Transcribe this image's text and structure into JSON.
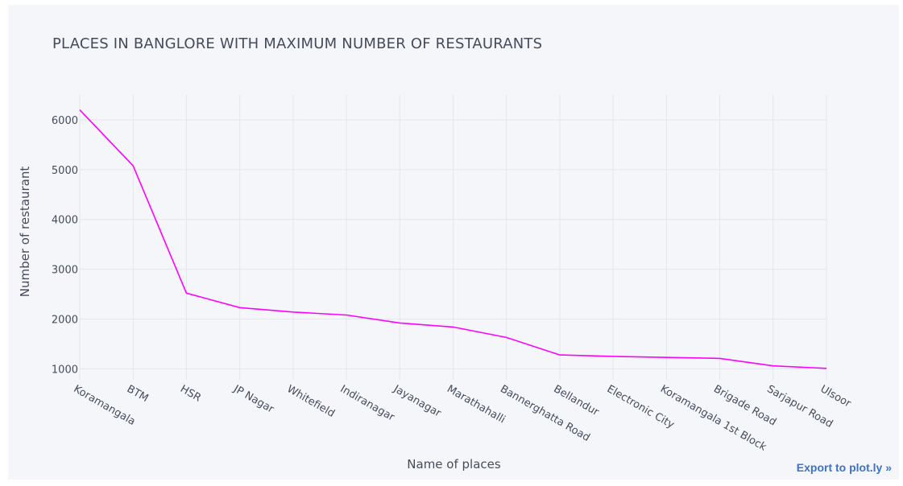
{
  "title": "PLACES IN BANGLORE WITH MAXIMUM NUMBER OF RESTAURANTS",
  "export_label": "Export to plot.ly »",
  "chart_data": {
    "type": "line",
    "title": "PLACES IN BANGLORE WITH MAXIMUM NUMBER OF RESTAURANTS",
    "xlabel": "Name of places",
    "ylabel": "Number of restaurant",
    "categories": [
      "Koramangala",
      "BTM",
      "HSR",
      "JP Nagar",
      "Whitefield",
      "Indiranagar",
      "Jayanagar",
      "Marathahalli",
      "Bannerghatta Road",
      "Bellandur",
      "Electronic City",
      "Koramangala 1st Block",
      "Brigade Road",
      "Sarjapur Road",
      "Ulsoor"
    ],
    "series": [
      {
        "values": [
          6200,
          5080,
          2520,
          2230,
          2140,
          2080,
          1920,
          1840,
          1630,
          1280,
          1250,
          1230,
          1210,
          1060,
          1010
        ]
      }
    ],
    "yticks": [
      1000,
      2000,
      3000,
      4000,
      5000,
      6000
    ],
    "ylim": [
      780,
      6500
    ],
    "grid": true,
    "line_color": "#ff00ff"
  }
}
